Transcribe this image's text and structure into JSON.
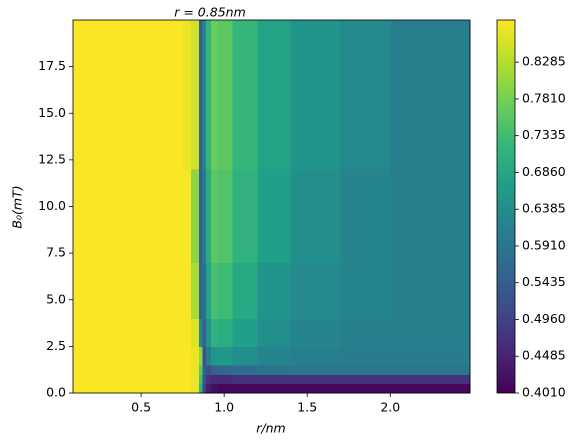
{
  "chart_data": {
    "type": "heatmap",
    "annotation": "r = 0.85nm",
    "xlabel": "r/nm",
    "ylabel": "B₀(mT)",
    "colormap": "viridis",
    "xlim": [
      0.09,
      2.48
    ],
    "ylim": [
      0,
      20
    ],
    "xticks": [
      0.5,
      {
        "value": 1.0,
        "label": "1.0"
      },
      1.5,
      {
        "value": 2.0,
        "label": "2.0"
      }
    ],
    "yticks": [
      {
        "value": 0,
        "label": "0.0"
      },
      2.5,
      {
        "value": 5,
        "label": "5.0"
      },
      7.5,
      {
        "value": 10,
        "label": "10.0"
      },
      12.5,
      {
        "value": 15,
        "label": "15.0"
      },
      17.5
    ],
    "clim": [
      0.401,
      0.883
    ],
    "cticks": [
      {
        "value": 0.401,
        "label": "0.4010"
      },
      0.4485,
      {
        "value": 0.496,
        "label": "0.4960"
      },
      0.5435,
      {
        "value": 0.591,
        "label": "0.5910"
      },
      0.6385,
      {
        "value": 0.686,
        "label": "0.6860"
      },
      0.7335,
      {
        "value": 0.781,
        "label": "0.7810"
      },
      0.8285
    ],
    "x_edges": [
      0.09,
      0.5,
      0.75,
      0.8,
      0.85,
      0.87,
      0.89,
      0.92,
      0.96,
      1.05,
      1.2,
      1.4,
      1.7,
      2.0,
      2.48
    ],
    "y_edges": [
      0,
      0.5,
      1,
      1.5,
      2.5,
      4,
      7,
      12,
      20
    ],
    "values": [
      [
        0.88,
        0.88,
        0.88,
        0.87,
        0.72,
        0.5,
        0.44,
        0.42,
        0.41,
        0.41,
        0.41,
        0.41,
        0.41,
        0.41
      ],
      [
        0.88,
        0.88,
        0.88,
        0.87,
        0.74,
        0.52,
        0.47,
        0.46,
        0.46,
        0.47,
        0.47,
        0.47,
        0.47,
        0.47
      ],
      [
        0.88,
        0.88,
        0.88,
        0.87,
        0.76,
        0.55,
        0.52,
        0.55,
        0.56,
        0.57,
        0.58,
        0.59,
        0.59,
        0.59
      ],
      [
        0.88,
        0.88,
        0.88,
        0.87,
        0.8,
        0.52,
        0.6,
        0.65,
        0.66,
        0.64,
        0.62,
        0.61,
        0.6,
        0.6
      ],
      [
        0.88,
        0.88,
        0.88,
        0.86,
        0.62,
        0.55,
        0.65,
        0.71,
        0.7,
        0.67,
        0.64,
        0.62,
        0.61,
        0.61
      ],
      [
        0.88,
        0.88,
        0.88,
        0.82,
        0.56,
        0.58,
        0.68,
        0.74,
        0.73,
        0.69,
        0.65,
        0.63,
        0.62,
        0.61
      ],
      [
        0.88,
        0.88,
        0.88,
        0.8,
        0.55,
        0.6,
        0.7,
        0.76,
        0.75,
        0.71,
        0.67,
        0.64,
        0.62,
        0.61
      ],
      [
        0.88,
        0.88,
        0.87,
        0.85,
        0.55,
        0.62,
        0.72,
        0.77,
        0.76,
        0.72,
        0.68,
        0.65,
        0.63,
        0.61
      ]
    ]
  }
}
